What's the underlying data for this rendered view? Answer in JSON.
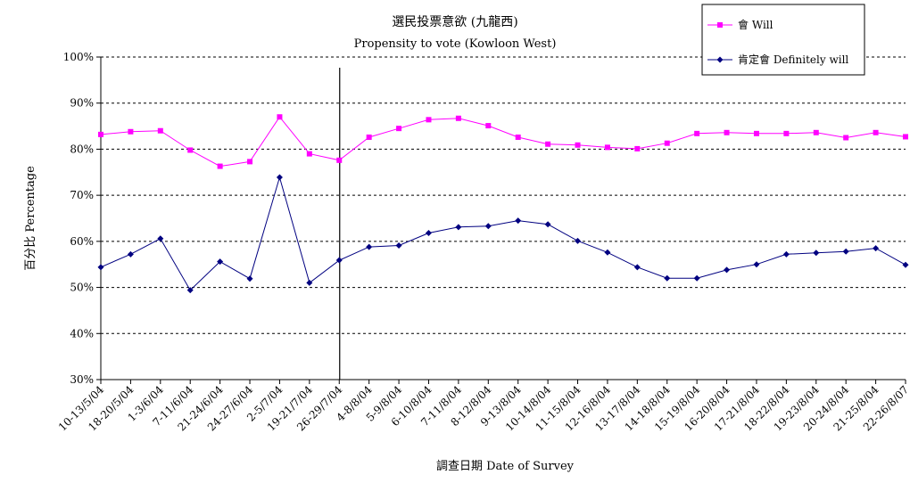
{
  "chart_data": {
    "type": "line",
    "title": "選民投票意欲 (九龍西)",
    "subtitle": "Propensity to vote (Kowloon West)",
    "xlabel": "調查日期 Date of Survey",
    "ylabel": "百分比 Percentage",
    "ylim": [
      30,
      100
    ],
    "yticks": [
      "30%",
      "40%",
      "50%",
      "60%",
      "70%",
      "80%",
      "90%",
      "100%"
    ],
    "ytick_values": [
      30,
      40,
      50,
      60,
      70,
      80,
      90,
      100
    ],
    "grid": true,
    "legend_position": "top-right",
    "categories": [
      "10-13/5/04",
      "18-20/5/04",
      "1-3/6/04",
      "7-11/6/04",
      "21-24/6/04",
      "24-27/6/04",
      "2-5/7/04",
      "19-21/7/04",
      "26-29/7/04",
      "4-8/8/04",
      "5-9/8/04",
      "6-10/8/04",
      "7-11/8/04",
      "8-12/8/04",
      "9-13/8/04",
      "10-14/8/04",
      "11-15/8/04",
      "12-16/8/04",
      "13-17/8/04",
      "14-18/8/04",
      "15-19/8/04",
      "16-20/8/04",
      "17-21/8/04",
      "18-22/8/04",
      "19-23/8/04",
      "20-24/8/04",
      "21-25/8/04",
      "22-26/8/07"
    ],
    "divider_after_category": "26-29/7/04",
    "series": [
      {
        "name": "會 Will",
        "color": "#ff00ff",
        "marker": "square",
        "values": [
          83.2,
          83.8,
          84.0,
          79.8,
          76.3,
          77.3,
          87.0,
          79.0,
          77.6,
          82.6,
          84.5,
          86.4,
          86.7,
          85.1,
          82.6,
          81.1,
          80.9,
          80.4,
          80.1,
          81.3,
          83.4,
          83.6,
          83.4,
          83.4,
          83.6,
          82.5,
          83.6,
          82.7
        ]
      },
      {
        "name": "肯定會 Definitely will",
        "color": "#000080",
        "marker": "diamond",
        "values": [
          54.4,
          57.2,
          60.6,
          49.4,
          55.6,
          51.9,
          73.9,
          51.0,
          55.9,
          58.8,
          59.1,
          61.8,
          63.1,
          63.3,
          64.5,
          63.7,
          60.1,
          57.6,
          54.4,
          52.0,
          52.0,
          53.8,
          55.0,
          57.2,
          57.5,
          57.8,
          58.5,
          54.9
        ]
      }
    ]
  }
}
